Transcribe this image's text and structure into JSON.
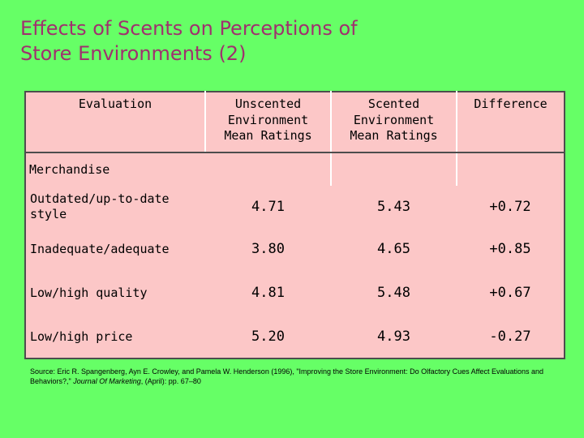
{
  "slide": {
    "title_line1": "Effects of Scents on Perceptions of",
    "title_line2": "Store Environments (2)"
  },
  "table": {
    "headers": {
      "evaluation": "Evaluation",
      "unscented": [
        "Unscented",
        "Environment",
        "Mean Ratings"
      ],
      "scented": [
        "Scented",
        "Environment",
        "Mean Ratings"
      ],
      "difference": "Difference"
    },
    "group_label": "Merchandise",
    "rows": [
      {
        "label": "Outdated/up-to-date style",
        "unscented": "4.71",
        "scented": "5.43",
        "difference": "+0.72"
      },
      {
        "label": "Inadequate/adequate",
        "unscented": "3.80",
        "scented": "4.65",
        "difference": "+0.85"
      },
      {
        "label": "Low/high quality",
        "unscented": "4.81",
        "scented": "5.48",
        "difference": "+0.67"
      },
      {
        "label": "Low/high price",
        "unscented": "5.20",
        "scented": "4.93",
        "difference": "-0.27"
      }
    ]
  },
  "source": {
    "prefix": "Source: Eric R. Spangenberg, Ayn E. Crowley, and Pamela W. Henderson (1996), \"Improving the Store Environment: Do Olfactory Cues Affect Evaluations and Behaviors?,\"",
    "journal": "Journal Of Marketing",
    "suffix": ", (April): pp. 67–80"
  },
  "colors": {
    "background": "#66ff66",
    "title": "#a0306e",
    "table_fill": "#fcc7c7",
    "table_border": "#4d4d4d"
  }
}
